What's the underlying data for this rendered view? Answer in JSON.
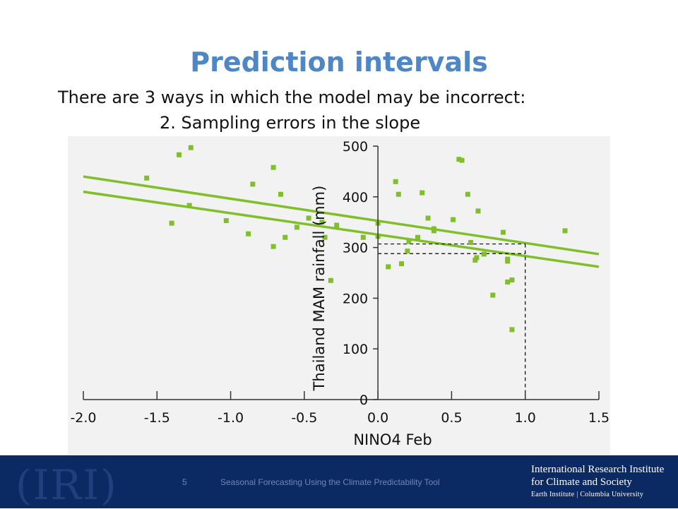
{
  "slide": {
    "title": "Prediction intervals",
    "line1": "There are 3 ways in which the model may be incorrect:",
    "line2": "2. Sampling errors in the slope"
  },
  "footer": {
    "page_number": "5",
    "caption": "Seasonal Forecasting Using the Climate Predictability Tool",
    "logo_text": "(IRI)",
    "org_line1": "International Research Institute",
    "org_line2": "for Climate and Society",
    "org_line3": "Earth Institute | Columbia University"
  },
  "colors": {
    "title": "#4f86c6",
    "series": "#7fbf2a",
    "footer_bg": "#0b2a63"
  },
  "chart_data": {
    "type": "scatter",
    "xlabel": "NINO4 Feb",
    "ylabel": "Thailand MAM rainfall (mm)",
    "xlim": [
      -2.0,
      1.5
    ],
    "ylim": [
      0,
      500
    ],
    "x_ticks": [
      "-2.0",
      "-1.5",
      "-1.0",
      "-0.5",
      "0.0",
      "0.5",
      "1.0",
      "1.5"
    ],
    "y_ticks": [
      "0",
      "100",
      "200",
      "300",
      "400",
      "500"
    ],
    "points": [
      [
        -1.57,
        437
      ],
      [
        -1.35,
        483
      ],
      [
        -1.27,
        497
      ],
      [
        -1.4,
        348
      ],
      [
        -1.28,
        383
      ],
      [
        -1.03,
        353
      ],
      [
        -0.88,
        327
      ],
      [
        -0.85,
        425
      ],
      [
        -0.71,
        458
      ],
      [
        -0.71,
        302
      ],
      [
        -0.66,
        405
      ],
      [
        -0.63,
        320
      ],
      [
        -0.55,
        340
      ],
      [
        -0.47,
        358
      ],
      [
        -0.38,
        350
      ],
      [
        -0.36,
        320
      ],
      [
        -0.32,
        235
      ],
      [
        -0.28,
        344
      ],
      [
        -0.1,
        320
      ],
      [
        0.0,
        322
      ],
      [
        0.0,
        348
      ],
      [
        0.07,
        262
      ],
      [
        0.12,
        430
      ],
      [
        0.14,
        405
      ],
      [
        0.16,
        268
      ],
      [
        0.2,
        293
      ],
      [
        0.21,
        312
      ],
      [
        0.27,
        320
      ],
      [
        0.3,
        408
      ],
      [
        0.34,
        358
      ],
      [
        0.38,
        337
      ],
      [
        0.38,
        333
      ],
      [
        0.51,
        355
      ],
      [
        0.55,
        474
      ],
      [
        0.57,
        472
      ],
      [
        0.61,
        405
      ],
      [
        0.63,
        310
      ],
      [
        0.66,
        275
      ],
      [
        0.67,
        280
      ],
      [
        0.68,
        372
      ],
      [
        0.72,
        287
      ],
      [
        0.78,
        206
      ],
      [
        0.85,
        330
      ],
      [
        0.88,
        277
      ],
      [
        0.88,
        232
      ],
      [
        0.88,
        273
      ],
      [
        0.91,
        236
      ],
      [
        0.91,
        138
      ],
      [
        1.27,
        333
      ]
    ],
    "lines": [
      {
        "x": [
          -2.0,
          1.5
        ],
        "y": [
          440,
          287
        ]
      },
      {
        "x": [
          -2.0,
          1.5
        ],
        "y": [
          410,
          262
        ]
      }
    ],
    "reference_lines": {
      "vertical_x": 1.0,
      "horizontal_y": [
        288,
        307
      ]
    }
  }
}
